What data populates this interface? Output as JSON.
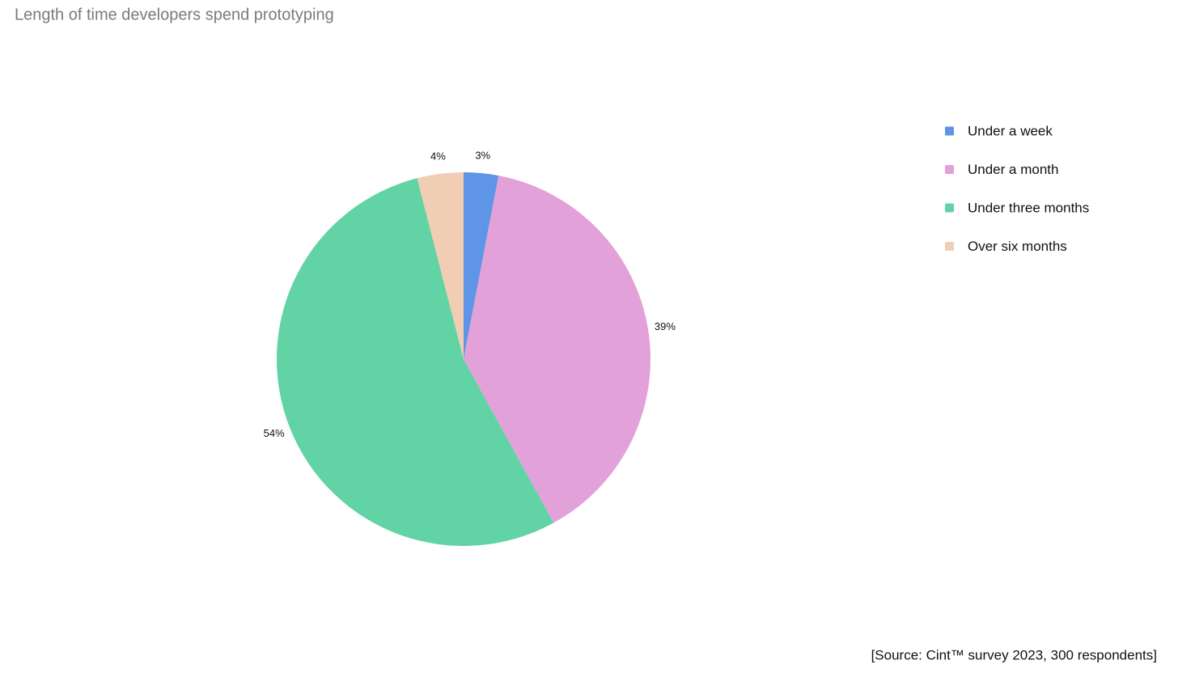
{
  "chart_data": {
    "type": "pie",
    "title": "Length of time developers spend prototyping",
    "categories": [
      "Under a week",
      "Under a month",
      "Under three months",
      "Over six months"
    ],
    "values": [
      3,
      39,
      54,
      4
    ],
    "value_labels": [
      "3%",
      "39%",
      "54%",
      "4%"
    ],
    "colors": [
      "#5f95e6",
      "#e2a1d8",
      "#62d3a5",
      "#f1cdb3"
    ],
    "legend": "top-right",
    "source": "[Source: Cint™ survey 2023, 300 respondents]"
  }
}
